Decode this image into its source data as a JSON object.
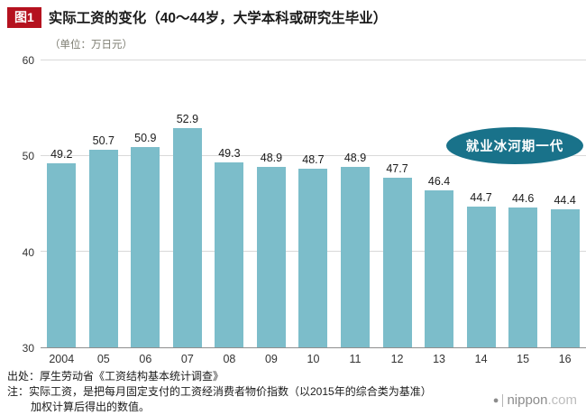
{
  "header": {
    "figure_label": "图1",
    "title": "实际工资的变化（40～44岁，大学本科或研究生毕业）",
    "unit": "（单位：万日元）"
  },
  "chart_data": {
    "type": "bar",
    "title": "实际工资的变化（40～44岁，大学本科或研究生毕业）",
    "ylabel": "（单位：万日元）",
    "categories": [
      "2004",
      "05",
      "06",
      "07",
      "08",
      "09",
      "10",
      "11",
      "12",
      "13",
      "14",
      "15",
      "16"
    ],
    "values": [
      49.2,
      50.7,
      50.9,
      52.9,
      49.3,
      48.9,
      48.7,
      48.9,
      47.7,
      46.4,
      44.7,
      44.6,
      44.4
    ],
    "ylim": [
      30,
      60
    ],
    "yticks": [
      30,
      40,
      50,
      60
    ],
    "grid": true,
    "legend_position": "none",
    "bar_color": "#7cbdca",
    "annotation": "就业冰河期一代",
    "annotation_bg_color": "#19728a"
  },
  "annotation": {
    "label": "就业冰河期一代"
  },
  "footer": {
    "source": "出处：厚生劳动省《工资结构基本统计调查》",
    "note_line1": "注：实际工资，是把每月固定支付的工资经消费者物价指数（以2015年的综合类为基准）",
    "note_line2": "加权计算后得出的数值。"
  },
  "logo": {
    "mark": "●",
    "name": "nippon",
    "com": ".com"
  }
}
